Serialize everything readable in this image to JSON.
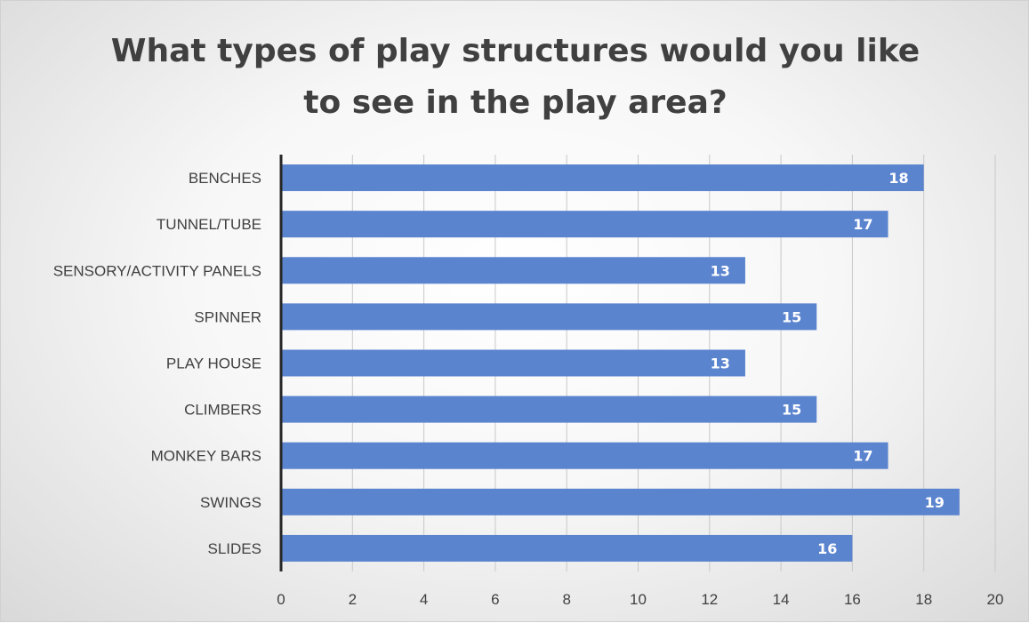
{
  "chart_data": {
    "type": "bar",
    "orientation": "horizontal",
    "title_lines": [
      "What types of play structures would you like",
      "to see in the play area?"
    ],
    "categories": [
      "BENCHES",
      "TUNNEL/TUBE",
      "SENSORY/ACTIVITY PANELS",
      "SPINNER",
      "PLAY HOUSE",
      "CLIMBERS",
      "MONKEY BARS",
      "SWINGS",
      "SLIDES"
    ],
    "values": [
      18,
      17,
      13,
      15,
      13,
      15,
      17,
      19,
      16
    ],
    "xlim": [
      0,
      20
    ],
    "xticks": [
      "0",
      "2",
      "4",
      "6",
      "8",
      "10",
      "12",
      "14",
      "16",
      "18",
      "20"
    ],
    "grid": true,
    "data_labels": true,
    "bar_color": "#5b84cf"
  }
}
